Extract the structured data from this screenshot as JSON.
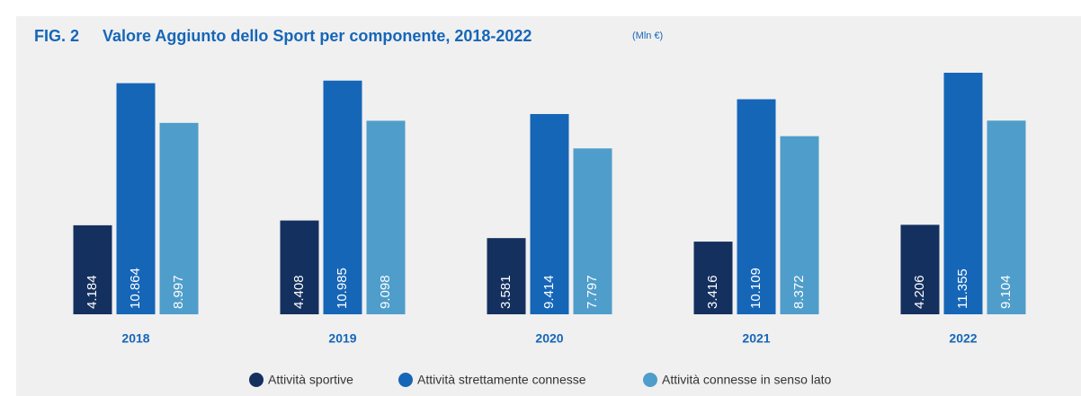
{
  "chart_data": {
    "type": "bar",
    "figure_label": "FIG. 2",
    "title": "Valore Aggiunto dello Sport per componente, 2018-2022",
    "unit": "(Mln €)",
    "categories": [
      "2018",
      "2019",
      "2020",
      "2021",
      "2022"
    ],
    "series": [
      {
        "name": "Attività sportive",
        "color": "#14305f",
        "values": [
          4184,
          4408,
          3581,
          3416,
          4206
        ],
        "value_labels": [
          "4.184",
          "4.408",
          "3.581",
          "3.416",
          "4.206"
        ]
      },
      {
        "name": "Attività strettamente connesse",
        "color": "#1666b8",
        "values": [
          10864,
          10985,
          9414,
          10109,
          11355
        ],
        "value_labels": [
          "10.864",
          "10.985",
          "9.414",
          "10.109",
          "11.355"
        ]
      },
      {
        "name": "Attività connesse in senso lato",
        "color": "#4f9dca",
        "values": [
          8997,
          9098,
          7797,
          8372,
          9104
        ],
        "value_labels": [
          "8.997",
          "9.098",
          "7.797",
          "8.372",
          "9.104"
        ]
      }
    ]
  }
}
